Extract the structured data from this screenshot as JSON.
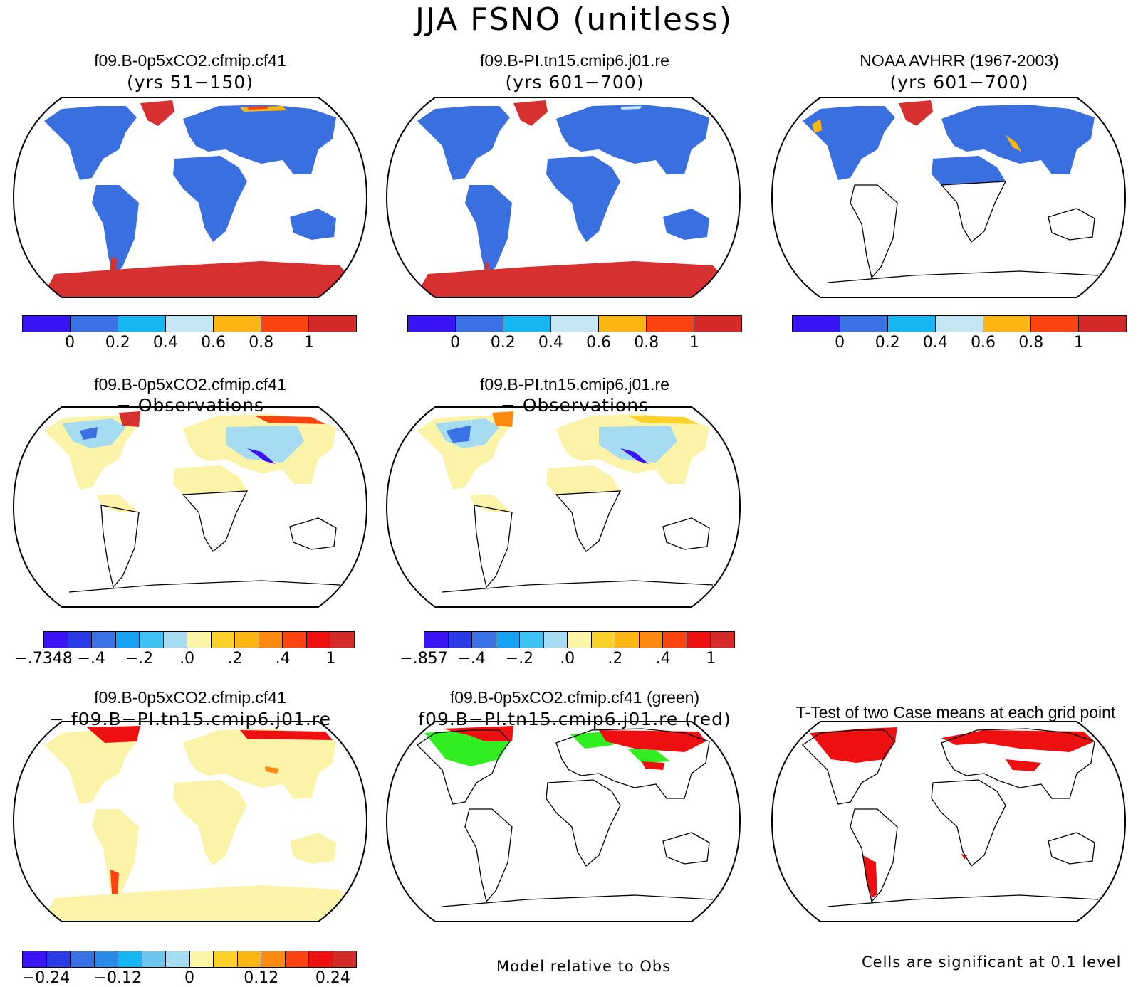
{
  "title": "JJA FSNO (unitless)",
  "colors": {
    "abs": [
      "#3a14f5",
      "#3a72e6",
      "#16b6f2",
      "#c4e6f2",
      "#fcb614",
      "#fc4410",
      "#d42a2a"
    ],
    "diff12": [
      "#3a14f5",
      "#2a3ae6",
      "#3a72e6",
      "#16a2f2",
      "#3ec4f4",
      "#a6dcf2",
      "#fcf6a6",
      "#fcd22a",
      "#fcb614",
      "#fc8a10",
      "#fc4410",
      "#ee1010",
      "#d42a2a"
    ],
    "land_blue": "#3a6fe0",
    "ice_red": "#d63030",
    "diff_yellow": "#fbf3a8",
    "sig_red": "#ee1010",
    "sig_green": "#30ee20"
  },
  "row1": {
    "panels": [
      {
        "title": "f09.B-0p5xCO2.cfmip.cf41",
        "subtitle": "(yrs 51−150)"
      },
      {
        "title": "f09.B-PI.tn15.cmip6.j01.re",
        "subtitle": "(yrs 601−700)"
      },
      {
        "title": "NOAA AVHRR (1967-2003)",
        "subtitle": "(yrs 601−700)"
      }
    ],
    "colorbar_labels": [
      "0",
      "0.2",
      "0.4",
      "0.6",
      "0.8",
      "1"
    ]
  },
  "row2": {
    "panels": [
      {
        "title": "f09.B-0p5xCO2.cfmip.cf41",
        "subtitle": "− Observations"
      },
      {
        "title": "f09.B-PI.tn15.cmip6.j01.re",
        "subtitle": "− Observations"
      }
    ],
    "colorbar1_labels": [
      "−.7348",
      "−.4",
      "−.2",
      ".0",
      ".2",
      ".4",
      "1"
    ],
    "colorbar2_labels": [
      "−.857",
      "−.4",
      "−.2",
      ".0",
      ".2",
      ".4",
      "1"
    ]
  },
  "row3": {
    "panels": [
      {
        "title": "f09.B-0p5xCO2.cfmip.cf41",
        "subtitle": "− f09.B−PI.tn15.cmip6.j01.re"
      },
      {
        "title": "f09.B-0p5xCO2.cfmip.cf41 (green)",
        "subtitle": "f09.B−PI.tn15.cmip6.j01.re (red)"
      },
      {
        "title": "T-Test of two Case means at each grid point",
        "subtitle": ""
      }
    ],
    "colorbar_labels": [
      "−0.24",
      "−0.12",
      "0",
      "0.12",
      "0.24"
    ],
    "note_middle": "Model relative to Obs",
    "note_right": "Cells are significant at 0.1 level"
  }
}
